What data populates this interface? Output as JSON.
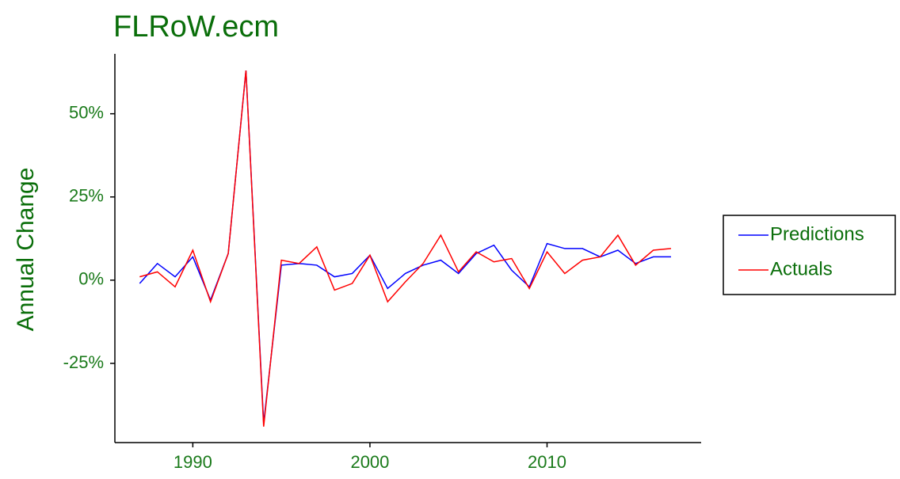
{
  "chart_data": {
    "type": "line",
    "title": "FLRoW.ecm",
    "y_label": "Annual Change",
    "x": [
      1987,
      1988,
      1989,
      1990,
      1991,
      1992,
      1993,
      1994,
      1995,
      1996,
      1997,
      1998,
      1999,
      2000,
      2001,
      2002,
      2003,
      2004,
      2005,
      2006,
      2007,
      2008,
      2009,
      2010,
      2011,
      2012,
      2013,
      2014,
      2015,
      2016,
      2017
    ],
    "series": [
      {
        "name": "Predictions",
        "color": "#0000ff",
        "values": [
          -1,
          5,
          1,
          7,
          -6,
          8,
          63,
          -43,
          4.5,
          5,
          4.5,
          1,
          2,
          7.5,
          -2.5,
          2,
          4.5,
          6,
          2,
          8,
          10.5,
          3,
          -2,
          11,
          9.5,
          9.5,
          7,
          9,
          5,
          7,
          7
        ]
      },
      {
        "name": "Actuals",
        "color": "#ff0000",
        "values": [
          1,
          2.5,
          -2,
          9,
          -6.5,
          8,
          63,
          -44,
          6,
          5,
          10,
          -3,
          -1,
          7.5,
          -6.5,
          -0.5,
          5,
          13.5,
          2.5,
          8.5,
          5.5,
          6.5,
          -2.5,
          8.5,
          2,
          6,
          7,
          13.5,
          4.5,
          9,
          9.5
        ]
      }
    ],
    "xlim": [
      1985.6,
      2018.7
    ],
    "xticks": [
      1990,
      2000,
      2010
    ],
    "ylim": [
      -48.8,
      68
    ],
    "yticks": [
      {
        "value": -25,
        "label": "-25%"
      },
      {
        "value": 0,
        "label": "0%"
      },
      {
        "value": 25,
        "label": "25%"
      },
      {
        "value": 50,
        "label": "50%"
      }
    ],
    "grid": false,
    "legend": "right"
  }
}
